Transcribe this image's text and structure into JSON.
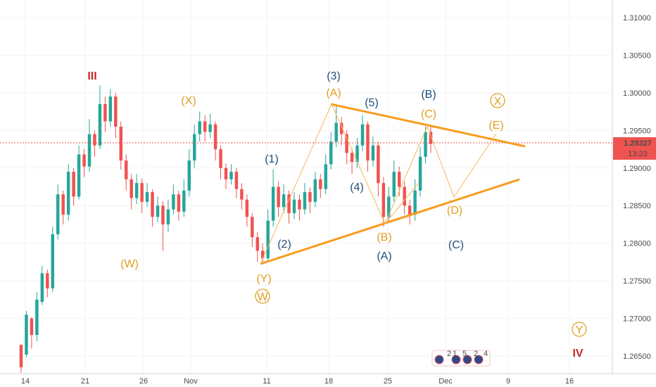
{
  "chart_data": {
    "type": "candlestick",
    "title": "",
    "x_ticks": [
      "14",
      "21",
      "26",
      "Nov",
      "11",
      "18",
      "25",
      "Dec",
      "9",
      "16"
    ],
    "y_ticks": [
      "1.31000",
      "1.30500",
      "1.30000",
      "1.29500",
      "1.29000",
      "1.28500",
      "1.28000",
      "1.27500",
      "1.27000",
      "1.26500"
    ],
    "ylim": [
      1.2632,
      1.3125
    ],
    "price_tag": {
      "value": "1.29327",
      "time": "13:23",
      "price": 1.29327
    },
    "colors": {
      "up": "#26a69a",
      "down": "#ef5350",
      "orange": "#f79c1e",
      "orange_label": "#e0a022",
      "blue_label": "#1f4e79",
      "red_label": "#c62828",
      "price_line": "#ef5350",
      "price_tag_bg": "#ef5350"
    },
    "candles": [
      [
        0,
        1.2665,
        1.2635,
        1.2652,
        1.2628
      ],
      [
        1,
        1.2652,
        1.2705,
        1.2648,
        1.271
      ],
      [
        2,
        1.27,
        1.2678,
        1.2702,
        1.266
      ],
      [
        3,
        1.2678,
        1.2725,
        1.267,
        1.2735
      ],
      [
        4,
        1.2722,
        1.276,
        1.2718,
        1.277
      ],
      [
        5,
        1.276,
        1.274,
        1.2765,
        1.2728
      ],
      [
        6,
        1.274,
        1.2812,
        1.2735,
        1.2822
      ],
      [
        7,
        1.2812,
        1.2865,
        1.2805,
        1.2878
      ],
      [
        8,
        1.2865,
        1.2838,
        1.287,
        1.2825
      ],
      [
        9,
        1.2838,
        1.2895,
        1.283,
        1.2905
      ],
      [
        10,
        1.2895,
        1.2862,
        1.29,
        1.285
      ],
      [
        11,
        1.2862,
        1.2918,
        1.2858,
        1.293
      ],
      [
        12,
        1.2918,
        1.2902,
        1.2925,
        1.2888
      ],
      [
        13,
        1.2902,
        1.2945,
        1.2895,
        1.2965
      ],
      [
        14,
        1.2945,
        1.293,
        1.295,
        1.2915
      ],
      [
        15,
        1.293,
        1.2985,
        1.2925,
        1.301
      ],
      [
        16,
        1.2985,
        1.2962,
        1.2995,
        1.2948
      ],
      [
        17,
        1.2962,
        1.2995,
        1.2955,
        1.3005
      ],
      [
        18,
        1.2995,
        1.2955,
        1.3,
        1.294
      ],
      [
        19,
        1.2955,
        1.291,
        1.2962,
        1.2898
      ],
      [
        20,
        1.291,
        1.2885,
        1.2918,
        1.287
      ],
      [
        21,
        1.2885,
        1.286,
        1.2892,
        1.2845
      ],
      [
        22,
        1.286,
        1.288,
        1.2852,
        1.2892
      ],
      [
        23,
        1.288,
        1.2855,
        1.2886,
        1.284
      ],
      [
        24,
        1.2855,
        1.2868,
        1.2848,
        1.288
      ],
      [
        25,
        1.2868,
        1.2835,
        1.2872,
        1.2822
      ],
      [
        26,
        1.2835,
        1.285,
        1.2828,
        1.2862
      ],
      [
        27,
        1.285,
        1.2825,
        1.2856,
        1.279
      ],
      [
        28,
        1.2825,
        1.2845,
        1.2815,
        1.2858
      ],
      [
        29,
        1.2845,
        1.2865,
        1.2838,
        1.2878
      ],
      [
        30,
        1.2865,
        1.2842,
        1.287,
        1.283
      ],
      [
        31,
        1.2842,
        1.287,
        1.2835,
        1.2885
      ],
      [
        32,
        1.287,
        1.291,
        1.2862,
        1.2925
      ],
      [
        33,
        1.291,
        1.2945,
        1.29,
        1.2958
      ],
      [
        34,
        1.2945,
        1.2962,
        1.2935,
        1.2975
      ],
      [
        35,
        1.2962,
        1.2948,
        1.297,
        1.2935
      ],
      [
        36,
        1.2948,
        1.2958,
        1.294,
        1.2972
      ],
      [
        37,
        1.2958,
        1.2925,
        1.2962,
        1.291
      ],
      [
        38,
        1.2925,
        1.29,
        1.293,
        1.2885
      ],
      [
        39,
        1.29,
        1.2885,
        1.2906,
        1.2872
      ],
      [
        40,
        1.2885,
        1.2895,
        1.2878,
        1.2905
      ],
      [
        41,
        1.2895,
        1.2872,
        1.29,
        1.286
      ],
      [
        42,
        1.2872,
        1.2858,
        1.288,
        1.2845
      ],
      [
        43,
        1.2858,
        1.2835,
        1.2865,
        1.2822
      ],
      [
        44,
        1.2835,
        1.2808,
        1.284,
        1.2795
      ],
      [
        45,
        1.2808,
        1.279,
        1.2815,
        1.2775
      ],
      [
        46,
        1.279,
        1.278,
        1.28,
        1.2772
      ],
      [
        47,
        1.278,
        1.283,
        1.2775,
        1.2845
      ],
      [
        48,
        1.283,
        1.2875,
        1.2822,
        1.2898
      ],
      [
        49,
        1.2875,
        1.2848,
        1.2882,
        1.2835
      ],
      [
        50,
        1.2848,
        1.2865,
        1.284,
        1.2878
      ],
      [
        51,
        1.2865,
        1.284,
        1.287,
        1.2826
      ],
      [
        52,
        1.284,
        1.2858,
        1.2832,
        1.2868
      ],
      [
        53,
        1.2858,
        1.2845,
        1.2865,
        1.283
      ],
      [
        54,
        1.2845,
        1.2868,
        1.2838,
        1.288
      ],
      [
        55,
        1.2868,
        1.2855,
        1.2874,
        1.284
      ],
      [
        56,
        1.2855,
        1.2885,
        1.2848,
        1.2895
      ],
      [
        57,
        1.2885,
        1.2872,
        1.2892,
        1.286
      ],
      [
        58,
        1.2872,
        1.2905,
        1.2865,
        1.2918
      ],
      [
        59,
        1.2905,
        1.2935,
        1.2898,
        1.2948
      ],
      [
        60,
        1.2935,
        1.296,
        1.2928,
        1.2982
      ],
      [
        61,
        1.296,
        1.2945,
        1.2968,
        1.293
      ],
      [
        62,
        1.2945,
        1.292,
        1.295,
        1.2905
      ],
      [
        63,
        1.292,
        1.2908,
        1.2926,
        1.2892
      ],
      [
        64,
        1.2908,
        1.293,
        1.29,
        1.294
      ],
      [
        65,
        1.293,
        1.2958,
        1.2922,
        1.297
      ],
      [
        66,
        1.2958,
        1.291,
        1.2962,
        1.2895
      ],
      [
        67,
        1.291,
        1.293,
        1.2902,
        1.2942
      ],
      [
        68,
        1.293,
        1.288,
        1.2935,
        1.2862
      ],
      [
        69,
        1.288,
        1.2835,
        1.2888,
        1.2822
      ],
      [
        70,
        1.2835,
        1.2862,
        1.2828,
        1.2875
      ],
      [
        71,
        1.2862,
        1.2895,
        1.2855,
        1.291
      ],
      [
        72,
        1.2895,
        1.2875,
        1.2902,
        1.2862
      ],
      [
        73,
        1.2875,
        1.285,
        1.2882,
        1.2838
      ],
      [
        74,
        1.285,
        1.2838,
        1.2858,
        1.2825
      ],
      [
        75,
        1.2838,
        1.287,
        1.283,
        1.2885
      ],
      [
        76,
        1.287,
        1.2915,
        1.2862,
        1.2928
      ],
      [
        77,
        1.2915,
        1.2948,
        1.2906,
        1.2955
      ],
      [
        78,
        1.2948,
        1.2932,
        1.2955,
        1.292
      ]
    ],
    "wave_labels": [
      {
        "text": "III",
        "color": "red",
        "circled": false
      },
      {
        "text": "(X)",
        "color": "orange",
        "circled": false
      },
      {
        "text": "(W)",
        "color": "orange",
        "circled": false
      },
      {
        "text": "(1)",
        "color": "blue",
        "circled": false
      },
      {
        "text": "(2)",
        "color": "blue",
        "circled": false
      },
      {
        "text": "(3)",
        "color": "blue",
        "circled": false
      },
      {
        "text": "(A)",
        "color": "orange",
        "circled": false
      },
      {
        "text": "(4)",
        "color": "blue",
        "circled": false
      },
      {
        "text": "(5)",
        "color": "blue",
        "circled": false
      },
      {
        "text": "(B)",
        "color": "orange",
        "circled": false
      },
      {
        "text": "(A)",
        "color": "blue",
        "circled": false
      },
      {
        "text": "(B)",
        "color": "blue",
        "circled": false
      },
      {
        "text": "(C)",
        "color": "orange",
        "circled": false
      },
      {
        "text": "(E)",
        "color": "orange",
        "circled": false
      },
      {
        "text": "(D)",
        "color": "orange",
        "circled": false
      },
      {
        "text": "(C)",
        "color": "blue",
        "circled": false
      },
      {
        "text": "(Y)",
        "color": "orange",
        "circled": false
      },
      {
        "text": "W",
        "color": "orange",
        "circled": true
      },
      {
        "text": "X",
        "color": "orange",
        "circled": true
      },
      {
        "text": "Y",
        "color": "orange",
        "circled": true
      },
      {
        "text": "IV",
        "color": "red",
        "circled": false
      }
    ],
    "events_badge": [
      "2",
      "1",
      "5",
      "2",
      "4"
    ]
  }
}
